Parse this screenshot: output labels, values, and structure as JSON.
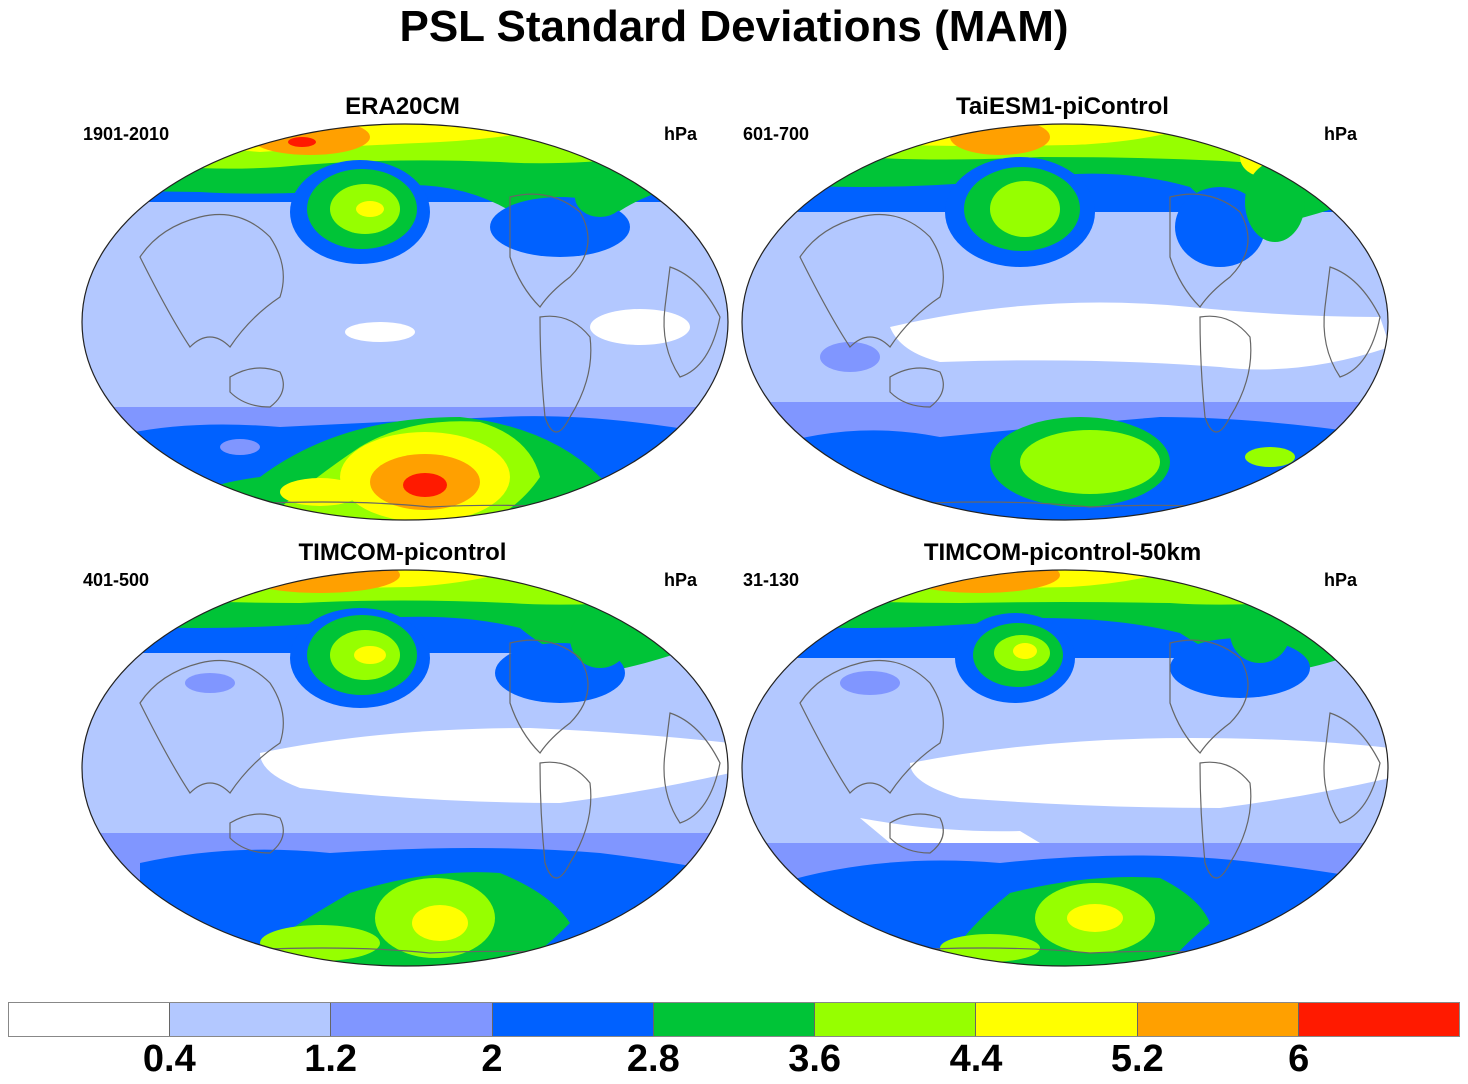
{
  "title": "PSL Standard Deviations (MAM)",
  "unit_label": "hPa",
  "panels": [
    {
      "title": "ERA20CM",
      "period": "1901-2010"
    },
    {
      "title": "TaiESM1-piControl",
      "period": "601-700"
    },
    {
      "title": "TIMCOM-picontrol",
      "period": "401-500"
    },
    {
      "title": "TIMCOM-picontrol-50km",
      "period": "31-130"
    }
  ],
  "colorbar": {
    "levels": [
      "0.4",
      "1.2",
      "2",
      "2.8",
      "3.6",
      "4.4",
      "5.2",
      "6"
    ],
    "colors": [
      "#ffffff",
      "#b3c8ff",
      "#8096ff",
      "#0061ff",
      "#00c437",
      "#96ff00",
      "#ffff00",
      "#ffa000",
      "#ff1a00"
    ]
  }
}
